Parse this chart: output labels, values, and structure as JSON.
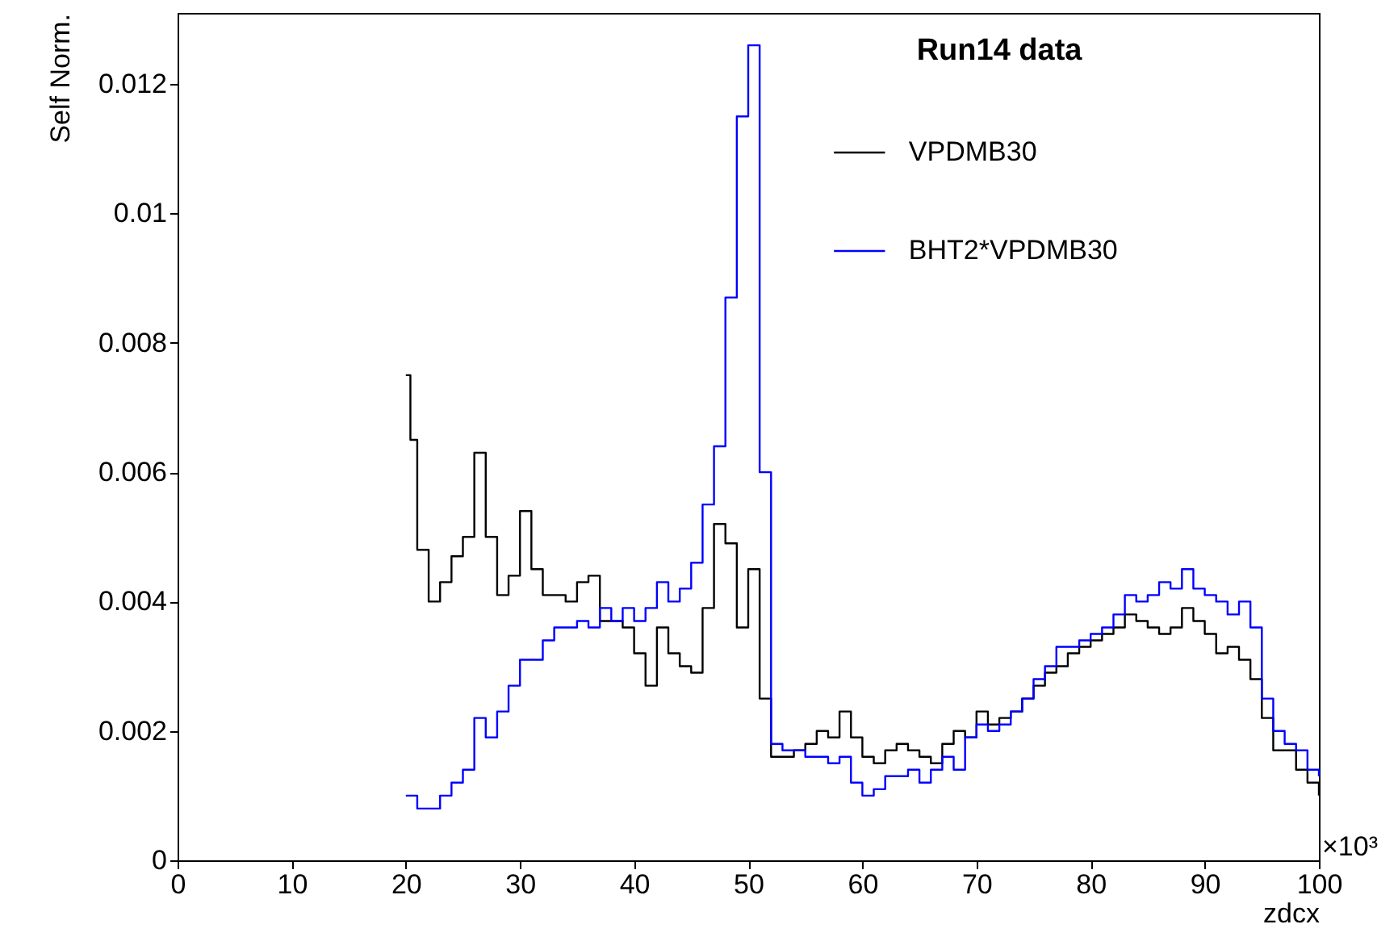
{
  "chart_data": {
    "type": "step",
    "title": "Run14 data",
    "xlabel": "zdcx",
    "ylabel": "Self Norm.",
    "annotations": [
      "×10³"
    ],
    "xlim": [
      0,
      100
    ],
    "xticks": [
      0,
      10,
      20,
      30,
      40,
      50,
      60,
      70,
      80,
      90,
      100
    ],
    "ylim": [
      0,
      0.0131
    ],
    "yticks": [
      0,
      0.002,
      0.004,
      0.006,
      0.008,
      0.01,
      0.012
    ],
    "grid": false,
    "legend": "top right",
    "line_style": "solid",
    "marker": "none",
    "series": [
      {
        "name": "VPDMB30",
        "color": "#000000",
        "x": [
          20,
          20.4,
          21,
          22,
          23,
          24,
          25,
          26,
          27,
          28,
          29,
          30,
          31,
          32,
          33,
          34,
          35,
          36,
          37,
          38,
          39,
          40,
          41,
          42,
          43,
          44,
          45,
          46,
          47,
          48,
          49,
          50,
          51,
          52,
          53,
          54,
          55,
          56,
          57,
          58,
          59,
          60,
          61,
          62,
          63,
          64,
          65,
          66,
          67,
          68,
          69,
          70,
          71,
          72,
          73,
          74,
          75,
          76,
          77,
          78,
          79,
          80,
          81,
          82,
          83,
          84,
          85,
          86,
          87,
          88,
          89,
          90,
          91,
          92,
          93,
          94,
          95,
          96,
          97,
          98,
          99,
          100
        ],
        "values": [
          0.0075,
          0.0065,
          0.0048,
          0.004,
          0.0043,
          0.0047,
          0.005,
          0.0063,
          0.005,
          0.0041,
          0.0044,
          0.0054,
          0.0045,
          0.0041,
          0.0041,
          0.004,
          0.0043,
          0.0044,
          0.0037,
          0.0037,
          0.0036,
          0.0032,
          0.0027,
          0.0036,
          0.0032,
          0.003,
          0.0029,
          0.0039,
          0.0052,
          0.0049,
          0.0036,
          0.0045,
          0.0025,
          0.0016,
          0.0016,
          0.0017,
          0.0018,
          0.002,
          0.0019,
          0.0023,
          0.0019,
          0.0016,
          0.0015,
          0.0017,
          0.0018,
          0.0017,
          0.0016,
          0.0015,
          0.0018,
          0.002,
          0.0019,
          0.0023,
          0.0021,
          0.0022,
          0.0023,
          0.0025,
          0.0027,
          0.0029,
          0.003,
          0.0032,
          0.0033,
          0.0034,
          0.0035,
          0.0036,
          0.0038,
          0.0037,
          0.0036,
          0.0035,
          0.0036,
          0.0039,
          0.0037,
          0.0035,
          0.0032,
          0.0033,
          0.0031,
          0.0028,
          0.0022,
          0.0017,
          0.0017,
          0.0014,
          0.0012,
          0.001
        ]
      },
      {
        "name": "BHT2*VPDMB30",
        "color": "#0000ff",
        "x": [
          20,
          21,
          22,
          23,
          24,
          25,
          26,
          27,
          28,
          29,
          30,
          31,
          32,
          33,
          34,
          35,
          36,
          37,
          38,
          39,
          40,
          41,
          42,
          43,
          44,
          45,
          46,
          47,
          48,
          49,
          50,
          51,
          52,
          53,
          54,
          55,
          56,
          57,
          58,
          59,
          60,
          61,
          62,
          63,
          64,
          65,
          66,
          67,
          68,
          69,
          70,
          71,
          72,
          73,
          74,
          75,
          76,
          77,
          78,
          79,
          80,
          81,
          82,
          83,
          84,
          85,
          86,
          87,
          88,
          89,
          90,
          91,
          92,
          93,
          94,
          95,
          96,
          97,
          98,
          99,
          100
        ],
        "values": [
          0.001,
          0.0008,
          0.0008,
          0.001,
          0.0012,
          0.0014,
          0.0022,
          0.0019,
          0.0023,
          0.0027,
          0.0031,
          0.0031,
          0.0034,
          0.0036,
          0.0036,
          0.0037,
          0.0036,
          0.0039,
          0.0037,
          0.0039,
          0.0037,
          0.0039,
          0.0043,
          0.004,
          0.0042,
          0.0046,
          0.0055,
          0.0064,
          0.0087,
          0.0115,
          0.0126,
          0.006,
          0.0018,
          0.0017,
          0.0017,
          0.0016,
          0.0016,
          0.0015,
          0.0016,
          0.0012,
          0.001,
          0.0011,
          0.0013,
          0.0013,
          0.0014,
          0.0012,
          0.0014,
          0.0016,
          0.0014,
          0.0019,
          0.0021,
          0.002,
          0.0021,
          0.0023,
          0.0025,
          0.0028,
          0.003,
          0.0033,
          0.0033,
          0.0034,
          0.0035,
          0.0036,
          0.0038,
          0.0041,
          0.004,
          0.0041,
          0.0043,
          0.0042,
          0.0045,
          0.0042,
          0.0041,
          0.004,
          0.0038,
          0.004,
          0.0036,
          0.0025,
          0.002,
          0.0018,
          0.0017,
          0.0014,
          0.0013
        ]
      }
    ]
  }
}
